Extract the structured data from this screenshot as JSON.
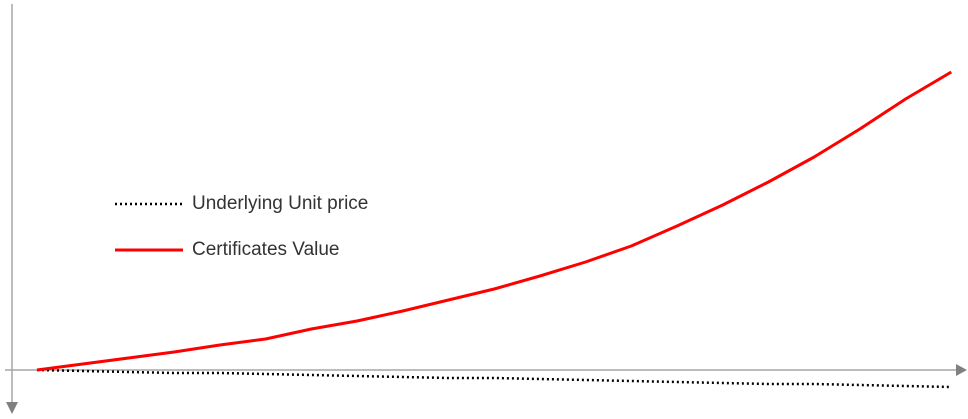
{
  "chart_data": {
    "type": "line",
    "x": [
      0,
      1,
      2,
      3,
      4,
      5,
      6,
      7,
      8,
      9,
      10,
      11,
      12,
      13,
      14,
      15,
      16,
      17,
      18,
      19,
      20
    ],
    "xlim": [
      -0.7,
      20.3
    ],
    "ylim": [
      -4,
      36.5
    ],
    "legend": "left",
    "series": [
      {
        "name": "Underlying Unit price",
        "color": "#000000",
        "dash": "dotted",
        "values": [
          0,
          -0.1,
          -0.2,
          -0.3,
          -0.3,
          -0.4,
          -0.5,
          -0.6,
          -0.7,
          -0.8,
          -0.8,
          -0.9,
          -1.0,
          -1.1,
          -1.2,
          -1.3,
          -1.4,
          -1.4,
          -1.5,
          -1.6,
          -1.7
        ]
      },
      {
        "name": "Certificates Value",
        "color": "#ff0000",
        "dash": "solid",
        "values": [
          0,
          0.6,
          1.2,
          1.8,
          2.5,
          3.1,
          4.1,
          4.9,
          5.9,
          7,
          8.1,
          9.4,
          10.8,
          12.4,
          14.4,
          16.5,
          18.8,
          21.3,
          24.1,
          27.1,
          29.8
        ]
      }
    ]
  }
}
